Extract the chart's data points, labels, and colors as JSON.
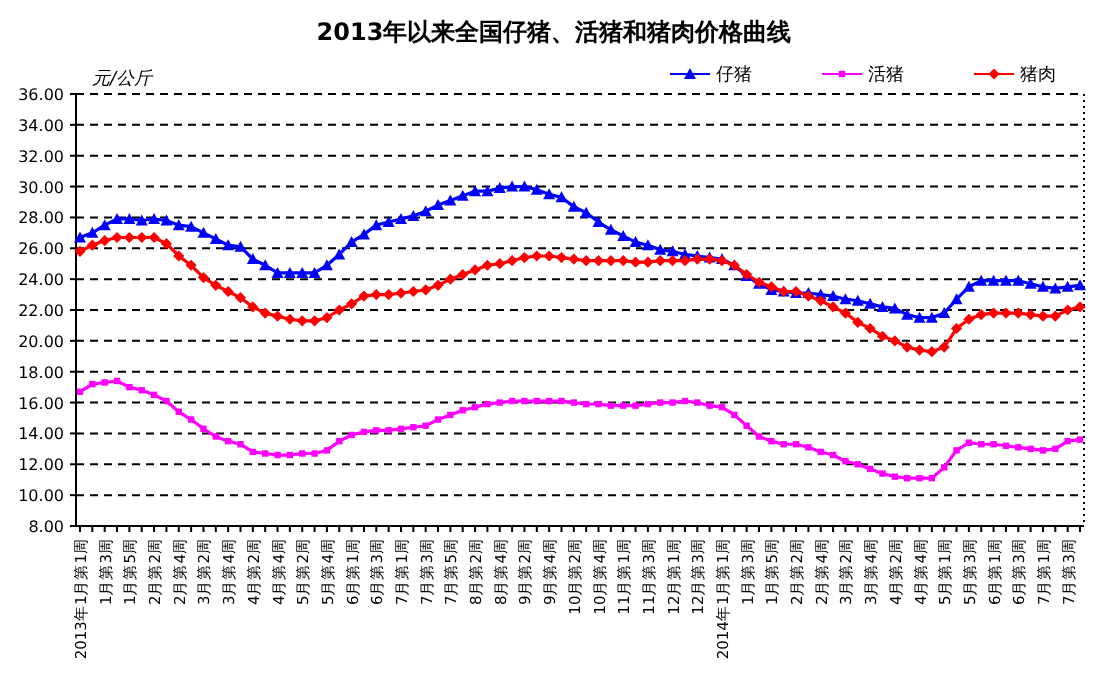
{
  "chart_data": {
    "type": "line",
    "title": "2013年以来全国仔猪、活猪和猪肉价格曲线",
    "ylabel": "元/公斤",
    "categories": [
      "2013年1月第1周",
      null,
      "1月第3周",
      null,
      "1月第5周",
      null,
      "2月第2周",
      null,
      "2月第4周",
      null,
      "3月第2周",
      null,
      "3月第4周",
      null,
      "4月第2周",
      null,
      "4月第4周",
      null,
      "5月第2周",
      null,
      "5月第4周",
      null,
      "6月第1周",
      null,
      "6月第3周",
      null,
      "7月第1周",
      null,
      "7月第3周",
      null,
      "7月第5周",
      null,
      "8月第2周",
      null,
      "8月第4周",
      null,
      "9月第2周",
      null,
      "9月第4周",
      null,
      "10月第2周",
      null,
      "10月第4周",
      null,
      "11月第1周",
      null,
      "11月第3周",
      null,
      "12月第1周",
      null,
      "12月第3周",
      null,
      "2014年1月第1周",
      null,
      "1月第3周",
      null,
      "1月第5周",
      null,
      "2月第2周",
      null,
      "2月第4周",
      null,
      "3月第2周",
      null,
      "3月第4周",
      null,
      "4月第2周",
      null,
      "4月第4周",
      null,
      "5月第1周",
      null,
      "5月第3周",
      null,
      "6月第1周",
      null,
      "6月第3周",
      null,
      "7月第1周",
      null,
      "7月第3周",
      null
    ],
    "series": [
      {
        "name": "仔猪",
        "color": "#0000ff",
        "marker": "triangle",
        "values": [
          26.7,
          27.0,
          27.5,
          27.9,
          27.9,
          27.8,
          27.9,
          27.8,
          27.5,
          27.4,
          27.0,
          26.6,
          26.2,
          26.1,
          25.3,
          24.9,
          24.4,
          24.4,
          24.4,
          24.4,
          24.9,
          25.6,
          26.4,
          26.9,
          27.5,
          27.7,
          27.9,
          28.1,
          28.4,
          28.8,
          29.1,
          29.4,
          29.7,
          29.7,
          29.9,
          30.0,
          30.0,
          29.8,
          29.5,
          29.3,
          28.7,
          28.3,
          27.7,
          27.2,
          26.8,
          26.4,
          26.2,
          25.9,
          25.8,
          25.6,
          25.5,
          25.4,
          25.3,
          24.9,
          24.2,
          23.7,
          23.3,
          23.2,
          23.1,
          23.1,
          23.0,
          22.9,
          22.7,
          22.6,
          22.4,
          22.2,
          22.1,
          21.7,
          21.5,
          21.5,
          21.8,
          22.7,
          23.5,
          23.9,
          23.9,
          23.9,
          23.9,
          23.7,
          23.5,
          23.4,
          23.5,
          23.6
        ]
      },
      {
        "name": "活猪",
        "color": "#ff00ff",
        "marker": "square",
        "values": [
          16.7,
          17.2,
          17.3,
          17.4,
          17.0,
          16.8,
          16.5,
          16.1,
          15.4,
          14.9,
          14.3,
          13.8,
          13.5,
          13.3,
          12.8,
          12.7,
          12.6,
          12.6,
          12.7,
          12.7,
          12.9,
          13.5,
          13.9,
          14.1,
          14.2,
          14.2,
          14.3,
          14.4,
          14.5,
          14.9,
          15.2,
          15.5,
          15.7,
          15.9,
          16.0,
          16.1,
          16.1,
          16.1,
          16.1,
          16.1,
          16.0,
          15.9,
          15.9,
          15.8,
          15.8,
          15.8,
          15.9,
          16.0,
          16.0,
          16.1,
          16.0,
          15.8,
          15.7,
          15.2,
          14.5,
          13.8,
          13.5,
          13.3,
          13.3,
          13.1,
          12.8,
          12.6,
          12.2,
          12.0,
          11.7,
          11.4,
          11.2,
          11.1,
          11.1,
          11.1,
          11.8,
          12.9,
          13.4,
          13.3,
          13.3,
          13.2,
          13.1,
          13.0,
          12.9,
          13.0,
          13.5,
          13.6
        ]
      },
      {
        "name": "猪肉",
        "color": "#ff0000",
        "marker": "diamond",
        "values": [
          25.8,
          26.2,
          26.5,
          26.7,
          26.7,
          26.7,
          26.7,
          26.3,
          25.5,
          24.9,
          24.1,
          23.6,
          23.2,
          22.8,
          22.2,
          21.8,
          21.6,
          21.4,
          21.3,
          21.3,
          21.5,
          22.0,
          22.4,
          22.9,
          23.0,
          23.0,
          23.1,
          23.2,
          23.3,
          23.6,
          24.0,
          24.3,
          24.6,
          24.9,
          25.0,
          25.2,
          25.4,
          25.5,
          25.5,
          25.4,
          25.3,
          25.2,
          25.2,
          25.2,
          25.2,
          25.1,
          25.1,
          25.2,
          25.2,
          25.2,
          25.3,
          25.3,
          25.2,
          24.9,
          24.3,
          23.8,
          23.5,
          23.2,
          23.2,
          22.9,
          22.6,
          22.2,
          21.8,
          21.2,
          20.8,
          20.3,
          20.0,
          19.6,
          19.4,
          19.3,
          19.6,
          20.8,
          21.4,
          21.7,
          21.8,
          21.8,
          21.8,
          21.7,
          21.6,
          21.6,
          22.0,
          22.2
        ]
      }
    ],
    "ylim": [
      8,
      36
    ],
    "yticks": [
      {
        "value": 8,
        "label": "8.00"
      },
      {
        "value": 10,
        "label": "10.00"
      },
      {
        "value": 12,
        "label": "12.00"
      },
      {
        "value": 14,
        "label": "14.00"
      },
      {
        "value": 16,
        "label": "16.00"
      },
      {
        "value": 18,
        "label": "18.00"
      },
      {
        "value": 20,
        "label": "20.00"
      },
      {
        "value": 22,
        "label": "22.00"
      },
      {
        "value": 24,
        "label": "24.00"
      },
      {
        "value": 26,
        "label": "26.00"
      },
      {
        "value": 28,
        "label": "28.00"
      },
      {
        "value": 30,
        "label": "30.00"
      },
      {
        "value": 32,
        "label": "32.00"
      },
      {
        "value": 34,
        "label": "34.00"
      },
      {
        "value": 36,
        "label": "36.00"
      }
    ],
    "grid": "y",
    "legend": "top right",
    "line_style": "solid"
  }
}
